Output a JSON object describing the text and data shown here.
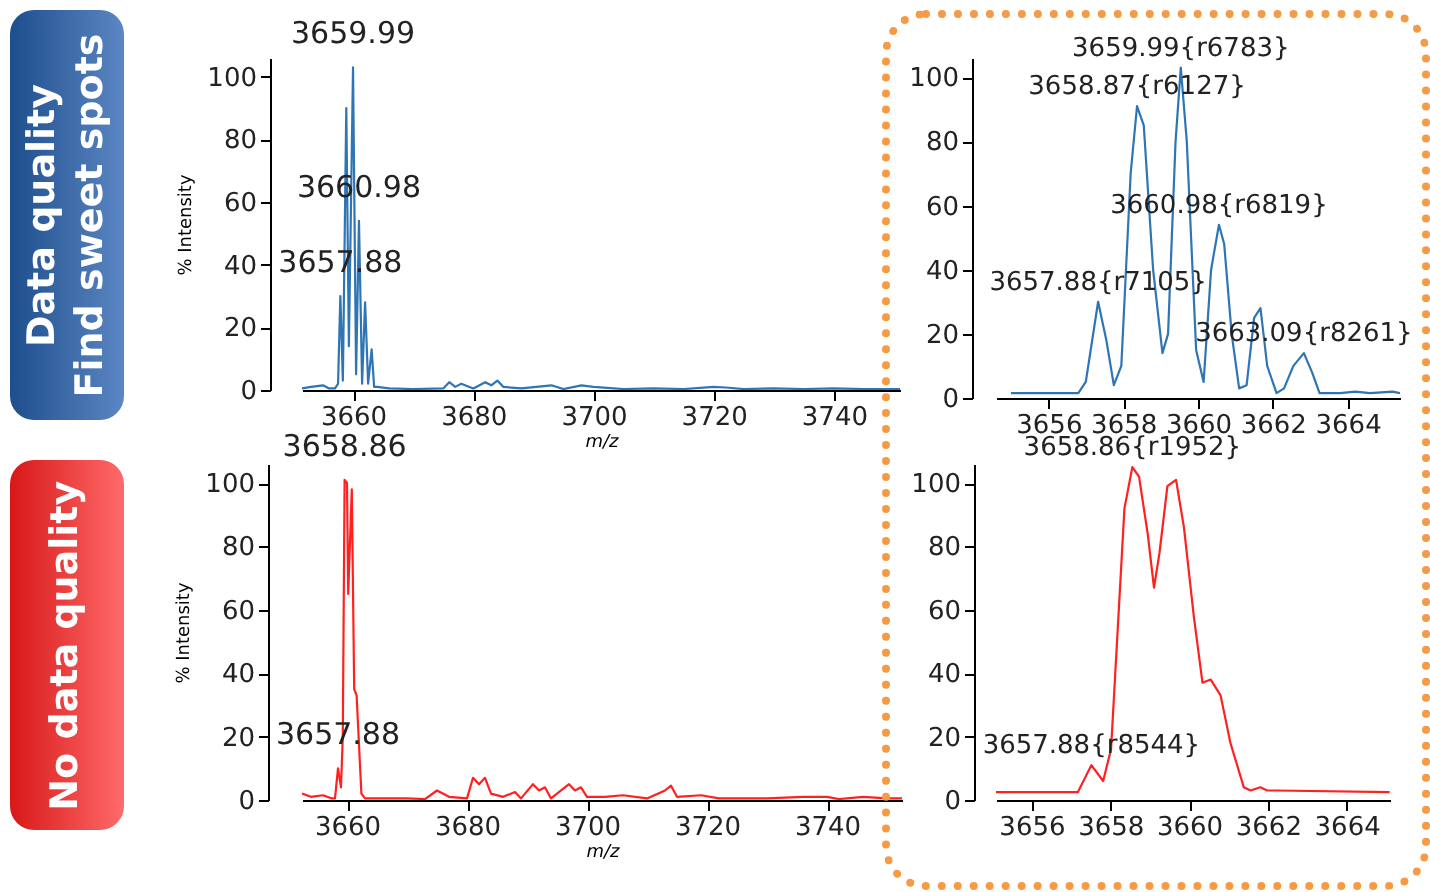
{
  "chart_data": [
    {
      "type": "line",
      "title": "Data quality",
      "subtitle": "Find sweet spots",
      "xlabel": "m/z",
      "ylabel": "% Intensity",
      "color": "#2f75b5",
      "xlim": [
        3651.5,
        3751
      ],
      "ylim": [
        0,
        106
      ],
      "xticks": [
        3660,
        3680,
        3700,
        3720,
        3740
      ],
      "yticks": [
        0,
        20,
        40,
        60,
        80,
        100
      ],
      "x": [
        3651.5,
        3653,
        3655,
        3656,
        3657,
        3657.5,
        3657.88,
        3658.3,
        3658.87,
        3659.3,
        3659.99,
        3660.5,
        3660.98,
        3661.5,
        3662,
        3662.5,
        3663.09,
        3663.5,
        3664,
        3666,
        3670,
        3675,
        3676,
        3677,
        3678,
        3680,
        3682,
        3683,
        3684,
        3685,
        3688,
        3693,
        3695,
        3698,
        3700,
        3705,
        3710,
        3715,
        3720,
        3722,
        3725,
        3730,
        3735,
        3740,
        3745,
        3751
      ],
      "values": [
        0.5,
        1,
        1.5,
        0.5,
        0.5,
        2,
        30,
        3,
        90,
        14,
        103,
        5,
        54,
        2,
        28,
        2,
        13,
        1,
        1,
        0.5,
        0.3,
        0.5,
        2.5,
        1,
        2,
        0.5,
        2.5,
        1.5,
        3,
        1,
        0.5,
        1.5,
        0.3,
        1.5,
        1,
        0.3,
        0.5,
        0.3,
        1,
        0.8,
        0.3,
        0.5,
        0.3,
        0.5,
        0.3,
        0.3
      ],
      "annotations": [
        {
          "text": "3659.99",
          "x": 3659.99,
          "y": 103
        },
        {
          "text": "3660.98",
          "x": 3660.98,
          "y": 54
        },
        {
          "text": "3657.88",
          "x": 3657.88,
          "y": 30
        }
      ]
    },
    {
      "type": "line",
      "color": "#2f75b5",
      "xlim": [
        3654.6,
        3665.4
      ],
      "ylim": [
        0,
        106
      ],
      "xticks": [
        3656,
        3658,
        3660,
        3662,
        3664
      ],
      "yticks": [
        0,
        20,
        40,
        60,
        80,
        100
      ],
      "x": [
        3655,
        3656.8,
        3657,
        3657.33,
        3657.55,
        3657.75,
        3657.95,
        3658.2,
        3658.37,
        3658.55,
        3658.8,
        3659.05,
        3659.2,
        3659.4,
        3659.54,
        3659.7,
        3659.95,
        3660.15,
        3660.35,
        3660.56,
        3660.7,
        3660.9,
        3661.1,
        3661.3,
        3661.5,
        3661.67,
        3661.85,
        3662.1,
        3662.3,
        3662.55,
        3662.83,
        3663.05,
        3663.25,
        3663.8,
        3664.2,
        3664.6,
        3665.2,
        3665.4
      ],
      "values": [
        1.5,
        1.5,
        5,
        30,
        18,
        4,
        10,
        70,
        91,
        85,
        40,
        14,
        20,
        80,
        103,
        80,
        15,
        5,
        40,
        54,
        48,
        20,
        3,
        4,
        25,
        28,
        10,
        1.5,
        3,
        10,
        14,
        8,
        1.5,
        1.5,
        2,
        1.5,
        2,
        1.5
      ],
      "annotations": [
        {
          "text": "3659.99{r6783}",
          "x": 3659.54,
          "y": 103
        },
        {
          "text": "3658.87{r6127}",
          "x": 3658.37,
          "y": 91
        },
        {
          "text": "3660.98{r6819}",
          "x": 3660.56,
          "y": 54
        },
        {
          "text": "3657.88{r7105}",
          "x": 3657.33,
          "y": 30
        },
        {
          "text": "3663.09{r8261}",
          "x": 3662.83,
          "y": 14
        }
      ]
    },
    {
      "type": "line",
      "title": "No data quality",
      "xlabel": "m/z",
      "ylabel": "% Intensity",
      "color": "#ff2020",
      "xlim": [
        3652.5,
        3752.5
      ],
      "ylim": [
        0,
        106
      ],
      "xticks": [
        3660,
        3680,
        3700,
        3720,
        3740
      ],
      "yticks": [
        0,
        20,
        40,
        60,
        80,
        100
      ],
      "x": [
        3652.5,
        3654,
        3656,
        3657.5,
        3658,
        3658.5,
        3659,
        3659.3,
        3659.6,
        3660,
        3660.2,
        3660.8,
        3661.2,
        3661.6,
        3662.4,
        3663,
        3665,
        3670,
        3673,
        3675,
        3677,
        3680,
        3681,
        3682,
        3683,
        3684,
        3686,
        3688,
        3689,
        3691,
        3692,
        3693,
        3694,
        3697,
        3698,
        3699,
        3700,
        3703,
        3706,
        3710,
        3713,
        3714,
        3715,
        3719,
        3722,
        3730,
        3736,
        3740,
        3742,
        3746,
        3750,
        3752.5
      ],
      "values": [
        2,
        1,
        1.5,
        0.5,
        0.5,
        10,
        4,
        20,
        101,
        100,
        65,
        98,
        35,
        33,
        2,
        0.5,
        0.5,
        0.5,
        0.3,
        3,
        1,
        0.5,
        7,
        5,
        7,
        2,
        1,
        2.5,
        0.5,
        5,
        3,
        4,
        0.5,
        5,
        3,
        4,
        1,
        1,
        1.5,
        0.5,
        3,
        4.5,
        1,
        1.5,
        0.5,
        0.5,
        1,
        1,
        0.3,
        1,
        0.5,
        0.5
      ],
      "annotations": [
        {
          "text": "3658.86",
          "x": 3659.6,
          "y": 101
        },
        {
          "text": "3657.88",
          "x": 3658.5,
          "y": 10
        }
      ]
    },
    {
      "type": "line",
      "color": "#ff2020",
      "xlim": [
        3655.1,
        3665.1
      ],
      "ylim": [
        0,
        106
      ],
      "xticks": [
        3656,
        3658,
        3660,
        3662,
        3664
      ],
      "yticks": [
        0,
        20,
        40,
        60,
        80,
        100
      ],
      "x": [
        3655.1,
        3657.18,
        3657.52,
        3657.82,
        3658.02,
        3658.36,
        3658.56,
        3658.73,
        3658.95,
        3659.11,
        3659.25,
        3659.45,
        3659.67,
        3659.87,
        3660.12,
        3660.34,
        3660.55,
        3660.8,
        3661.05,
        3661.39,
        3661.56,
        3661.81,
        3661.98,
        3662.23,
        3665.09
      ],
      "values": [
        2.5,
        2.5,
        11,
        6,
        16,
        92,
        105,
        102,
        84,
        67,
        78,
        99,
        101,
        86,
        58,
        37,
        38,
        33,
        18,
        4,
        3,
        4,
        3,
        3,
        2.5
      ],
      "annotations": [
        {
          "text": "3658.86{r1952}",
          "x": 3658.56,
          "y": 105
        },
        {
          "text": "3657.88{r8544}",
          "x": 3657.52,
          "y": 11
        }
      ]
    }
  ]
}
